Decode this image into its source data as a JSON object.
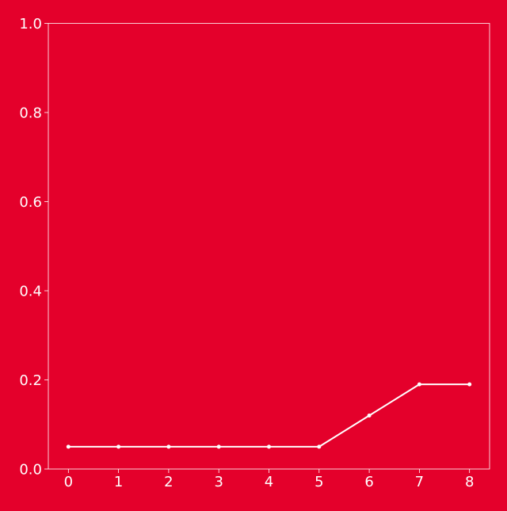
{
  "colors": {
    "background": "#E4002B",
    "foreground": "#FFFFFF"
  },
  "chart_data": {
    "type": "line",
    "title": "",
    "xlabel": "",
    "ylabel": "",
    "x": [
      0,
      1,
      2,
      3,
      4,
      5,
      6,
      7,
      8
    ],
    "series": [
      {
        "values": [
          0.05,
          0.05,
          0.05,
          0.05,
          0.05,
          0.05,
          0.12,
          0.19,
          0.19
        ]
      }
    ],
    "xlim": [
      -0.4,
      8.4
    ],
    "ylim": [
      0,
      1
    ],
    "x_ticks": [
      "0",
      "1",
      "2",
      "3",
      "4",
      "5",
      "6",
      "7",
      "8"
    ],
    "y_ticks": [
      "0.0",
      "0.2",
      "0.4",
      "0.6",
      "0.8",
      "1.0"
    ],
    "grid": false,
    "legend": "none",
    "markers": true
  }
}
